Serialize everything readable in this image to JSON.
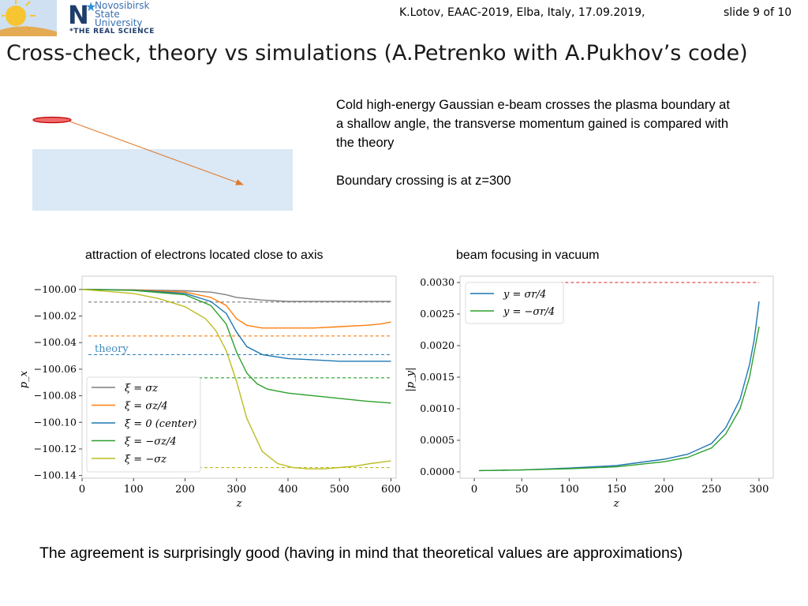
{
  "header": {
    "meta": "K.Lotov, EAAC-2019, Elba, Italy, 17.09.2019,",
    "slide": "slide 9 of 10",
    "university": [
      "Novosibirsk",
      "State",
      "University"
    ],
    "motto": "*THE REAL SCIENCE"
  },
  "title": "Cross-check, theory vs simulations (A.Petrenko with A.Pukhov’s code)",
  "description": {
    "p1": "Cold high-energy Gaussian e-beam crosses the plasma boundary at a shallow angle, the transverse momentum gained is compared with the theory",
    "p2": "Boundary crossing is at z=300"
  },
  "captions": {
    "left": "attraction of electrons located close to axis",
    "right": "beam focusing in vacuum"
  },
  "conclusion": "The agreement is surprisingly good (having in mind that theoretical values are approximations)",
  "colors": {
    "gray": "#7f7f7f",
    "orange": "#ff7f0e",
    "blue": "#1f77b4",
    "green": "#2ca02c",
    "olive": "#bcbd22",
    "red": "#d62728",
    "plasma": "#dbe8f5",
    "arrow": "#e07a2a"
  },
  "chart_data": [
    {
      "type": "line",
      "xlabel": "z",
      "ylabel": "p_x",
      "xlim": [
        0,
        610
      ],
      "ylim": [
        -100.142,
        -99.99
      ],
      "xticks": [
        0,
        100,
        200,
        300,
        400,
        500,
        600
      ],
      "yticks": [
        -100.0,
        -100.02,
        -100.04,
        -100.06,
        -100.08,
        -100.1,
        -100.12,
        -100.14
      ],
      "ytick_labels": [
        "−100.00",
        "−100.02",
        "−100.04",
        "−100.06",
        "−100.08",
        "−100.10",
        "−100.12",
        "−100.14"
      ],
      "annotation": "theory",
      "legend_location": "lower-left",
      "series": [
        {
          "name": "ξ = σz",
          "color_key": "gray",
          "x": [
            0,
            100,
            200,
            250,
            280,
            300,
            350,
            400,
            500,
            600
          ],
          "y": [
            -100.0,
            -100.0003,
            -100.001,
            -100.002,
            -100.004,
            -100.006,
            -100.008,
            -100.009,
            -100.009,
            -100.009
          ],
          "theory": -100.0095
        },
        {
          "name": "ξ = σz/4",
          "color_key": "orange",
          "x": [
            0,
            100,
            200,
            250,
            280,
            300,
            320,
            350,
            400,
            450,
            500,
            550,
            580,
            600
          ],
          "y": [
            -100.0,
            -100.0004,
            -100.002,
            -100.006,
            -100.012,
            -100.022,
            -100.027,
            -100.029,
            -100.029,
            -100.029,
            -100.028,
            -100.027,
            -100.026,
            -100.0245
          ],
          "theory": -100.035
        },
        {
          "name": "ξ = 0 (center)",
          "color_key": "blue",
          "x": [
            0,
            100,
            200,
            250,
            280,
            300,
            320,
            350,
            400,
            450,
            500,
            550,
            600
          ],
          "y": [
            -100.0,
            -100.0005,
            -100.003,
            -100.009,
            -100.018,
            -100.032,
            -100.043,
            -100.049,
            -100.052,
            -100.053,
            -100.054,
            -100.054,
            -100.054
          ],
          "theory": -100.049
        },
        {
          "name": "ξ = −σz/4",
          "color_key": "green",
          "x": [
            0,
            100,
            200,
            250,
            280,
            300,
            320,
            340,
            360,
            400,
            450,
            500,
            550,
            600
          ],
          "y": [
            -100.0,
            -100.0007,
            -100.004,
            -100.012,
            -100.026,
            -100.047,
            -100.063,
            -100.071,
            -100.075,
            -100.078,
            -100.08,
            -100.082,
            -100.084,
            -100.0855
          ],
          "theory": -100.0665
        },
        {
          "name": "ξ = −σz",
          "color_key": "olive",
          "x": [
            0,
            100,
            150,
            200,
            240,
            260,
            280,
            300,
            320,
            350,
            380,
            410,
            440,
            470,
            500,
            530,
            560,
            580,
            600
          ],
          "y": [
            -100.0,
            -100.003,
            -100.007,
            -100.013,
            -100.022,
            -100.031,
            -100.046,
            -100.069,
            -100.097,
            -100.122,
            -100.131,
            -100.134,
            -100.135,
            -100.135,
            -100.134,
            -100.133,
            -100.131,
            -100.13,
            -100.129
          ],
          "theory": -100.134
        }
      ]
    },
    {
      "type": "line",
      "xlabel": "z",
      "ylabel": "|p_y|",
      "xlim": [
        -15,
        315
      ],
      "ylim": [
        -0.0001,
        0.0031
      ],
      "xticks": [
        0,
        50,
        100,
        150,
        200,
        250,
        300
      ],
      "yticks": [
        0.0,
        0.0005,
        0.001,
        0.0015,
        0.002,
        0.0025,
        0.003
      ],
      "ytick_labels": [
        "0.0000",
        "0.0005",
        "0.0010",
        "0.0015",
        "0.0020",
        "0.0025",
        "0.0030"
      ],
      "theory_line": {
        "from": 90,
        "to": 300,
        "value": 0.003,
        "color_key": "red"
      },
      "legend_location": "top-left",
      "series": [
        {
          "name": "y = σr/4",
          "color_key": "blue",
          "x": [
            5,
            50,
            100,
            150,
            200,
            225,
            250,
            265,
            280,
            290,
            295,
            300
          ],
          "y": [
            2e-05,
            3e-05,
            6e-05,
            0.0001,
            0.0002,
            0.00028,
            0.00045,
            0.0007,
            0.00115,
            0.0017,
            0.0021,
            0.0027
          ]
        },
        {
          "name": "y = −σr/4",
          "color_key": "green",
          "x": [
            5,
            50,
            100,
            150,
            200,
            225,
            250,
            265,
            280,
            290,
            295,
            300
          ],
          "y": [
            2e-05,
            3e-05,
            5e-05,
            8e-05,
            0.00016,
            0.00023,
            0.00038,
            0.0006,
            0.001,
            0.0015,
            0.0019,
            0.0023
          ]
        }
      ]
    }
  ]
}
